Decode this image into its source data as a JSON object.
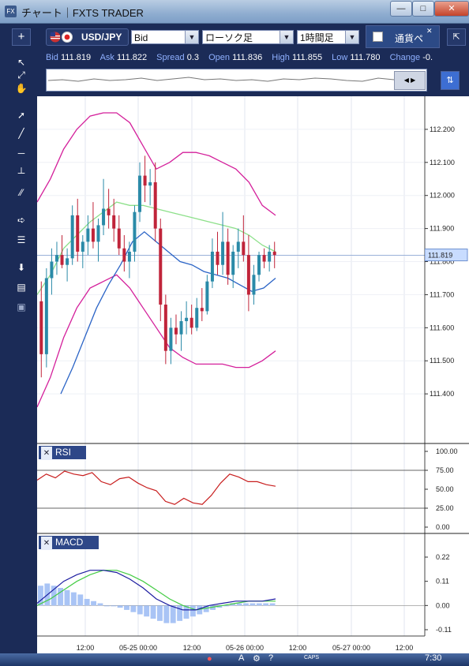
{
  "window": {
    "app_icon": "FX",
    "title": "チャート｜FXTS TRADER"
  },
  "toolbar": {
    "symbol": "USD/JPY",
    "price_type": "Bid",
    "chart_style": "ローソク足",
    "timeframe": "1時間足",
    "pair_label": "通貨ペ"
  },
  "quote": {
    "bid_label": "Bid",
    "bid": "111.819",
    "ask_label": "Ask",
    "ask": "111.822",
    "spread_label": "Spread",
    "spread": "0.3",
    "open_label": "Open",
    "open": "111.836",
    "high_label": "High",
    "high": "111.855",
    "low_label": "Low",
    "low": "111.780",
    "change_label": "Change",
    "change": "-0."
  },
  "price_axis": {
    "ticks": [
      "112.200",
      "112.100",
      "112.000",
      "111.900",
      "111.800",
      "111.700",
      "111.600",
      "111.500",
      "111.400"
    ],
    "current_price": "111.819"
  },
  "rsi_panel": {
    "label": "RSI",
    "ticks": [
      "100.00",
      "75.00",
      "50.00",
      "25.00",
      "0.00"
    ]
  },
  "macd_panel": {
    "label": "MACD",
    "ticks": [
      "0.22",
      "0.11",
      "0.00",
      "-0.11"
    ]
  },
  "time_axis": {
    "ticks": [
      "12:00",
      "05-25 00:00",
      "12:00",
      "05-26 00:00",
      "12:00",
      "05-27 00:00",
      "12:00"
    ]
  },
  "taskbar": {
    "clock": "7:30",
    "caps": "CAPS"
  },
  "colors": {
    "bull": "#2a8aa8",
    "bear": "#c0243a",
    "bb_outer": "#d4209b",
    "bb_mid": "#8de08a",
    "ma": "#2b64c6",
    "rsi": "#c81e1e",
    "macd": "#1c1ca0",
    "signal": "#44cc44",
    "hist": "#a9c4f5"
  },
  "chart_data": {
    "type": "candlestick",
    "ylim": [
      111.25,
      112.3
    ],
    "candles": [
      {
        "o": 111.68,
        "h": 111.74,
        "l": 111.45,
        "c": 111.52
      },
      {
        "o": 111.52,
        "h": 111.78,
        "l": 111.48,
        "c": 111.75
      },
      {
        "o": 111.75,
        "h": 111.84,
        "l": 111.7,
        "c": 111.8
      },
      {
        "o": 111.8,
        "h": 111.86,
        "l": 111.76,
        "c": 111.82
      },
      {
        "o": 111.82,
        "h": 111.88,
        "l": 111.78,
        "c": 111.79
      },
      {
        "o": 111.79,
        "h": 111.84,
        "l": 111.74,
        "c": 111.81
      },
      {
        "o": 111.81,
        "h": 111.97,
        "l": 111.79,
        "c": 111.94
      },
      {
        "o": 111.94,
        "h": 111.99,
        "l": 111.8,
        "c": 111.83
      },
      {
        "o": 111.83,
        "h": 111.88,
        "l": 111.78,
        "c": 111.86
      },
      {
        "o": 111.86,
        "h": 111.94,
        "l": 111.82,
        "c": 111.9
      },
      {
        "o": 111.9,
        "h": 111.98,
        "l": 111.84,
        "c": 111.86
      },
      {
        "o": 111.86,
        "h": 111.93,
        "l": 111.8,
        "c": 111.91
      },
      {
        "o": 111.91,
        "h": 112.05,
        "l": 111.88,
        "c": 111.96
      },
      {
        "o": 111.96,
        "h": 112.02,
        "l": 111.9,
        "c": 111.94
      },
      {
        "o": 111.94,
        "h": 111.99,
        "l": 111.86,
        "c": 111.9
      },
      {
        "o": 111.9,
        "h": 111.94,
        "l": 111.82,
        "c": 111.84
      },
      {
        "o": 111.84,
        "h": 111.88,
        "l": 111.77,
        "c": 111.8
      },
      {
        "o": 111.8,
        "h": 111.86,
        "l": 111.75,
        "c": 111.83
      },
      {
        "o": 111.83,
        "h": 111.97,
        "l": 111.8,
        "c": 111.95
      },
      {
        "o": 111.95,
        "h": 112.1,
        "l": 111.92,
        "c": 112.06
      },
      {
        "o": 112.06,
        "h": 112.12,
        "l": 111.98,
        "c": 112.03
      },
      {
        "o": 112.03,
        "h": 112.08,
        "l": 111.97,
        "c": 112.04
      },
      {
        "o": 112.04,
        "h": 112.1,
        "l": 111.86,
        "c": 111.9
      },
      {
        "o": 111.9,
        "h": 111.93,
        "l": 111.62,
        "c": 111.67
      },
      {
        "o": 111.67,
        "h": 111.7,
        "l": 111.49,
        "c": 111.53
      },
      {
        "o": 111.53,
        "h": 111.63,
        "l": 111.49,
        "c": 111.6
      },
      {
        "o": 111.6,
        "h": 111.64,
        "l": 111.55,
        "c": 111.58
      },
      {
        "o": 111.58,
        "h": 111.65,
        "l": 111.53,
        "c": 111.62
      },
      {
        "o": 111.62,
        "h": 111.68,
        "l": 111.58,
        "c": 111.63
      },
      {
        "o": 111.63,
        "h": 111.67,
        "l": 111.58,
        "c": 111.6
      },
      {
        "o": 111.6,
        "h": 111.69,
        "l": 111.59,
        "c": 111.66
      },
      {
        "o": 111.66,
        "h": 111.72,
        "l": 111.62,
        "c": 111.65
      },
      {
        "o": 111.65,
        "h": 111.76,
        "l": 111.64,
        "c": 111.74
      },
      {
        "o": 111.74,
        "h": 111.87,
        "l": 111.72,
        "c": 111.83
      },
      {
        "o": 111.83,
        "h": 111.89,
        "l": 111.76,
        "c": 111.79
      },
      {
        "o": 111.79,
        "h": 111.95,
        "l": 111.76,
        "c": 111.86
      },
      {
        "o": 111.86,
        "h": 111.9,
        "l": 111.73,
        "c": 111.76
      },
      {
        "o": 111.76,
        "h": 111.85,
        "l": 111.72,
        "c": 111.83
      },
      {
        "o": 111.83,
        "h": 111.9,
        "l": 111.78,
        "c": 111.86
      },
      {
        "o": 111.86,
        "h": 111.94,
        "l": 111.8,
        "c": 111.82
      },
      {
        "o": 111.82,
        "h": 111.88,
        "l": 111.65,
        "c": 111.7
      },
      {
        "o": 111.7,
        "h": 111.79,
        "l": 111.67,
        "c": 111.76
      },
      {
        "o": 111.76,
        "h": 111.83,
        "l": 111.74,
        "c": 111.82
      },
      {
        "o": 111.82,
        "h": 111.84,
        "l": 111.78,
        "c": 111.8
      },
      {
        "o": 111.8,
        "h": 111.85,
        "l": 111.77,
        "c": 111.83
      },
      {
        "o": 111.83,
        "h": 111.86,
        "l": 111.78,
        "c": 111.82
      }
    ],
    "bb_upper": [
      111.98,
      112.05,
      112.14,
      112.2,
      112.24,
      112.25,
      112.25,
      112.22,
      112.15,
      112.08,
      112.1,
      112.13,
      112.13,
      112.12,
      112.1,
      112.08,
      112.04,
      111.97,
      111.94
    ],
    "bb_middle": [
      111.7,
      111.76,
      111.84,
      111.88,
      111.92,
      111.95,
      111.98,
      111.97,
      111.97,
      111.96,
      111.95,
      111.94,
      111.93,
      111.92,
      111.91,
      111.9,
      111.88,
      111.85,
      111.83
    ],
    "bb_lower": [
      111.36,
      111.45,
      111.57,
      111.66,
      111.72,
      111.74,
      111.76,
      111.72,
      111.66,
      111.6,
      111.54,
      111.51,
      111.49,
      111.49,
      111.49,
      111.48,
      111.48,
      111.5,
      111.53
    ],
    "moving_average": [
      111.4,
      111.48,
      111.57,
      111.66,
      111.73,
      111.79,
      111.86,
      111.89,
      111.86,
      111.83,
      111.8,
      111.79,
      111.77,
      111.76,
      111.75,
      111.73,
      111.71,
      111.72,
      111.75
    ],
    "rsi": [
      62,
      70,
      65,
      74,
      70,
      68,
      72,
      60,
      56,
      64,
      66,
      58,
      52,
      48,
      34,
      30,
      38,
      32,
      30,
      42,
      58,
      70,
      66,
      60,
      60,
      56,
      54
    ],
    "macd": [
      0.01,
      0.06,
      0.11,
      0.14,
      0.16,
      0.16,
      0.15,
      0.12,
      0.08,
      0.03,
      0.0,
      -0.02,
      -0.02,
      0.0,
      0.01,
      0.02,
      0.02,
      0.02,
      0.03
    ],
    "signal": [
      0.0,
      0.03,
      0.07,
      0.11,
      0.14,
      0.16,
      0.16,
      0.14,
      0.11,
      0.07,
      0.03,
      0.0,
      -0.02,
      -0.01,
      0.0,
      0.01,
      0.02,
      0.02,
      0.02
    ],
    "histogram": [
      0.09,
      0.1,
      0.09,
      0.08,
      0.07,
      0.06,
      0.05,
      0.03,
      0.02,
      0.01,
      0.0,
      0.0,
      -0.01,
      -0.02,
      -0.03,
      -0.04,
      -0.05,
      -0.06,
      -0.07,
      -0.08,
      -0.08,
      -0.07,
      -0.06,
      -0.05,
      -0.04,
      -0.03,
      -0.02,
      -0.01,
      0.0,
      0.01,
      0.01,
      0.01,
      0.01,
      0.01,
      0.01,
      0.01
    ]
  }
}
